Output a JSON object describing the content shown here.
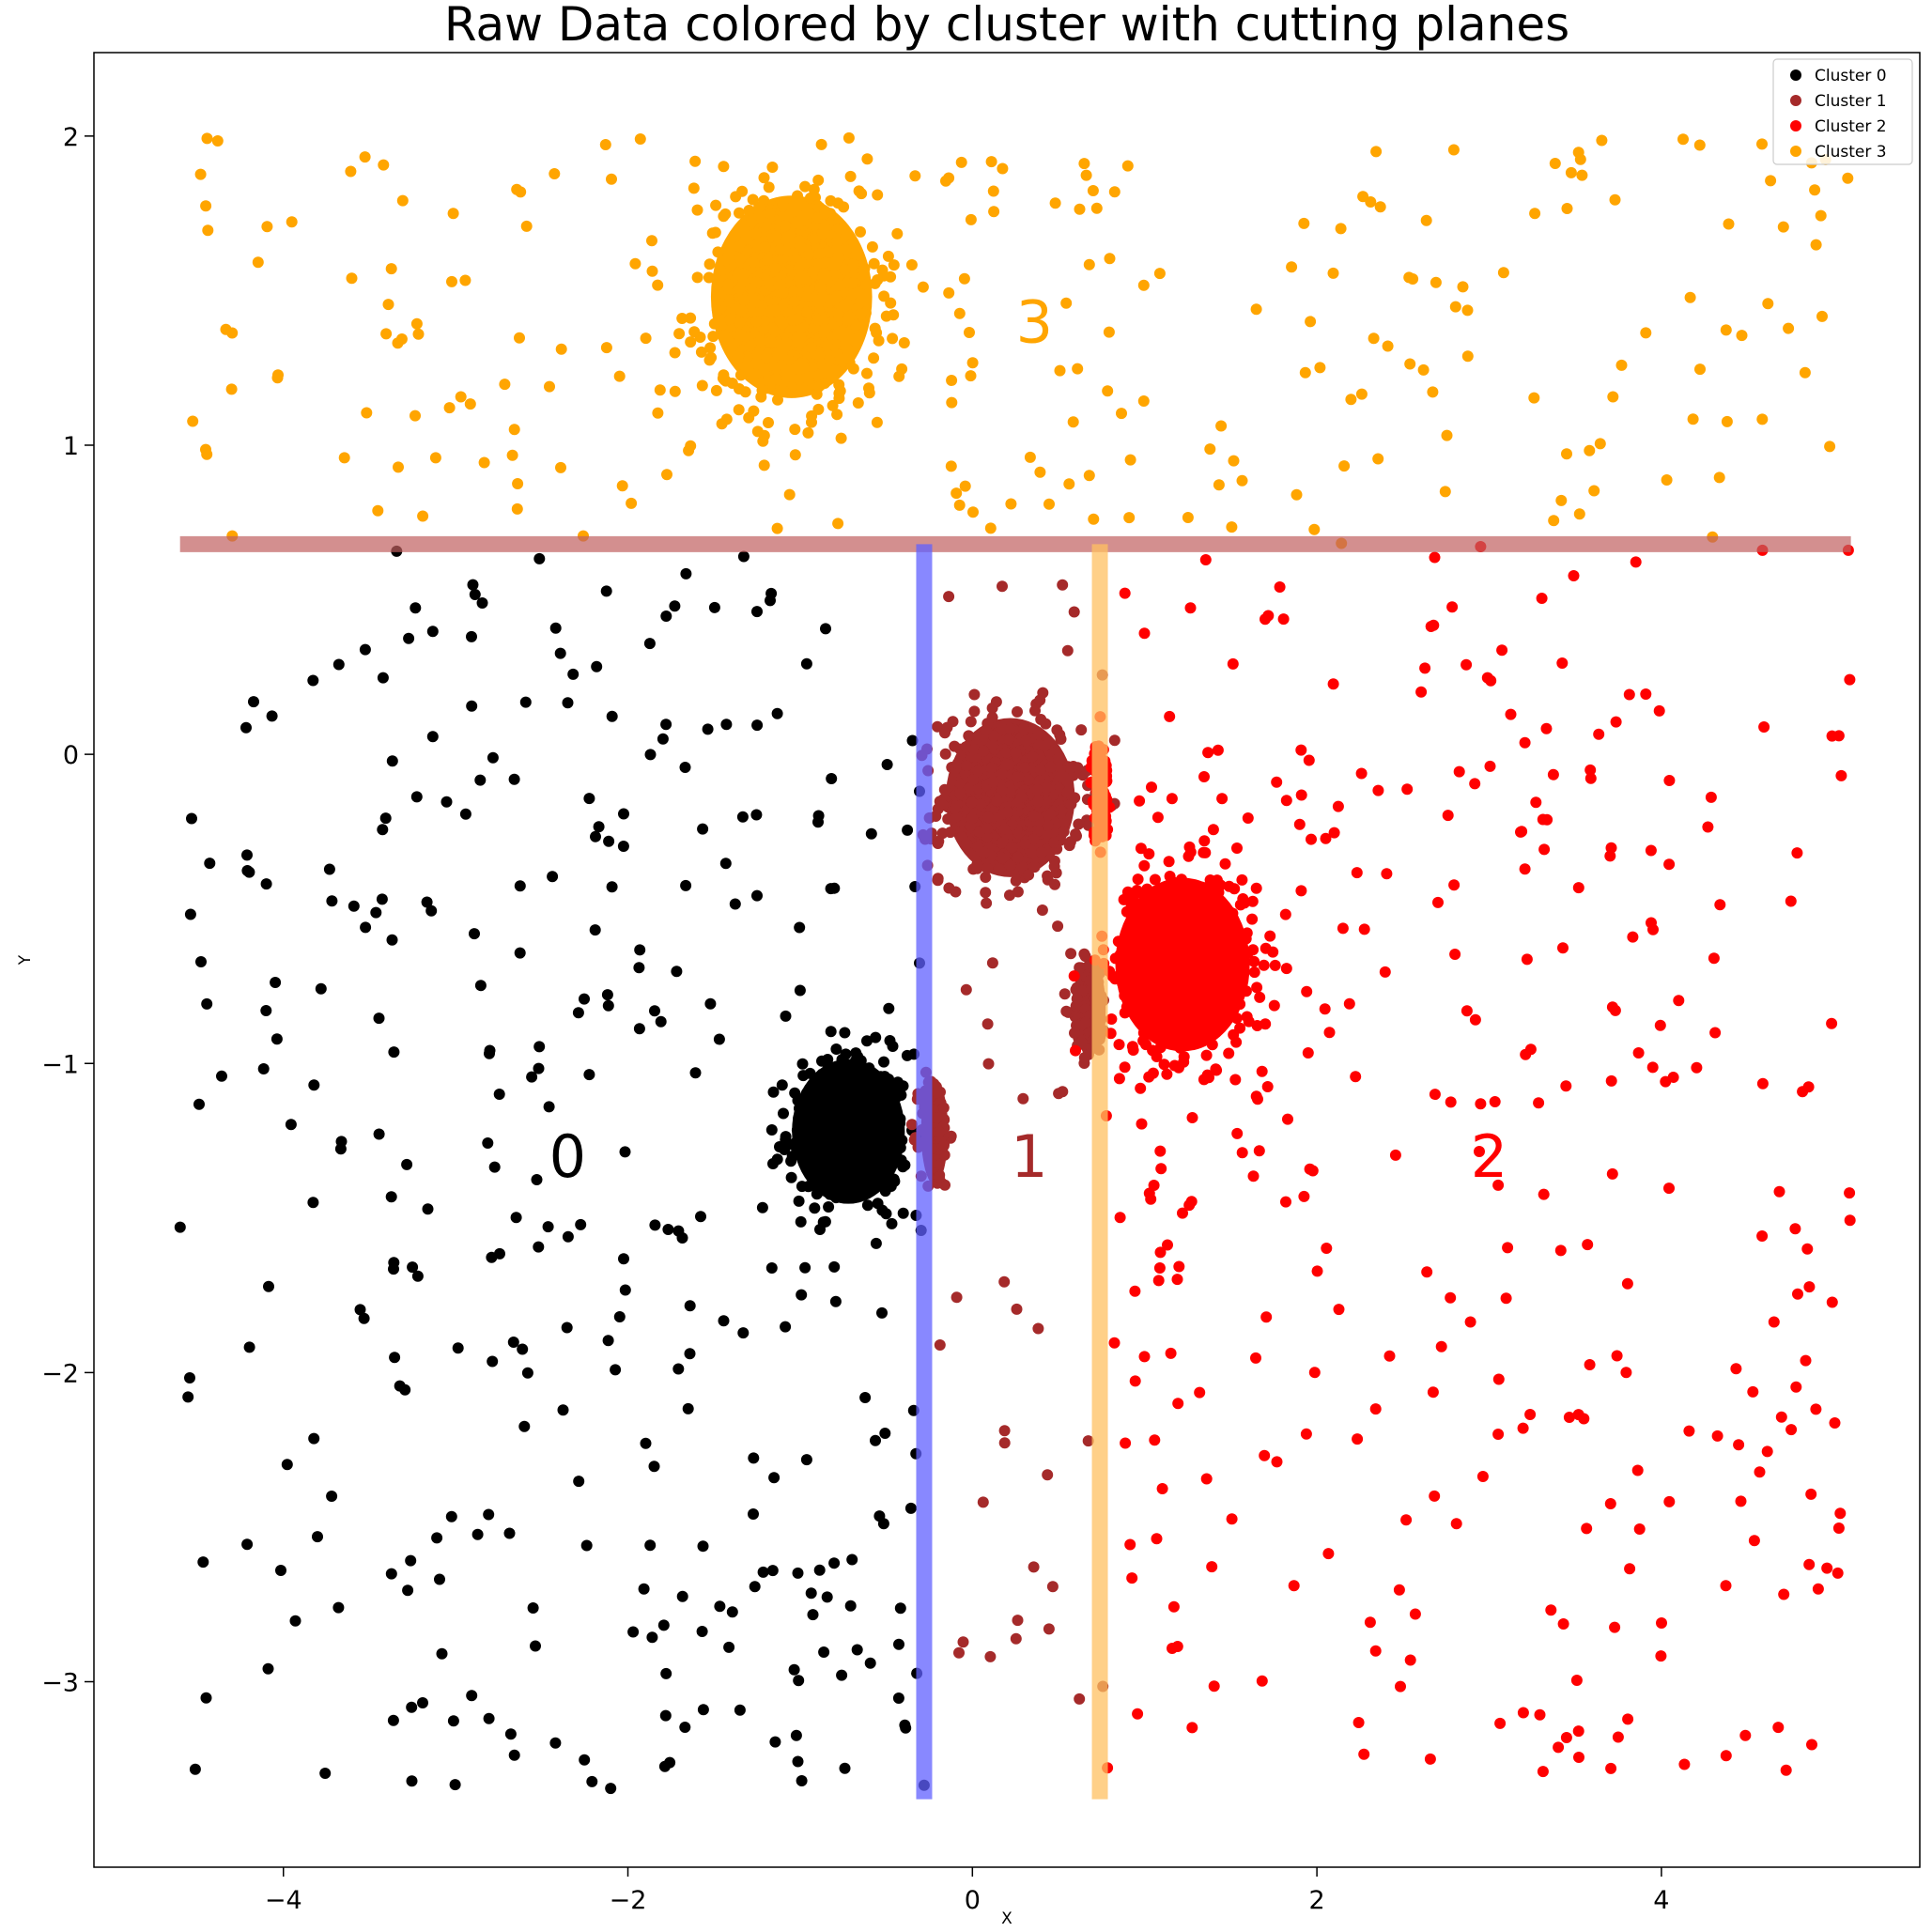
{
  "chart_data": {
    "type": "scatter",
    "title": "Raw Data colored by cluster with cutting planes",
    "xlabel": "X",
    "ylabel": "Y",
    "xlim": [
      -5.1,
      5.5
    ],
    "ylim": [
      -3.6,
      2.27
    ],
    "xticks": [
      -4,
      -2,
      0,
      2,
      4
    ],
    "yticks": [
      -3,
      -2,
      -1,
      0,
      1,
      2
    ],
    "legend_position": "top-right",
    "grid": false,
    "series": [
      {
        "name": "Cluster 0",
        "color": "#000000",
        "blobs": [
          {
            "cx": -0.72,
            "cy": -1.22,
            "rx": 0.42,
            "ry": 0.3
          }
        ],
        "x_range": [
          -4.6,
          -0.28
        ],
        "y_range": [
          -3.35,
          0.68
        ]
      },
      {
        "name": "Cluster 1",
        "color": "#a52a2a",
        "blobs": [
          {
            "cx": 0.22,
            "cy": -0.14,
            "rx": 0.48,
            "ry": 0.33
          },
          {
            "cx": -0.22,
            "cy": -1.22,
            "rx": 0.1,
            "ry": 0.22
          },
          {
            "cx": 0.68,
            "cy": -0.82,
            "rx": 0.12,
            "ry": 0.2
          }
        ],
        "x_range": [
          -0.28,
          0.76
        ],
        "y_range": [
          -3.35,
          0.68
        ]
      },
      {
        "name": "Cluster 2",
        "color": "#ff0000",
        "blobs": [
          {
            "cx": 1.22,
            "cy": -0.68,
            "rx": 0.5,
            "ry": 0.36
          },
          {
            "cx": 0.74,
            "cy": -0.12,
            "rx": 0.06,
            "ry": 0.2
          }
        ],
        "x_range": [
          0.76,
          5.1
        ],
        "y_range": [
          -3.35,
          0.68
        ]
      },
      {
        "name": "Cluster 3",
        "color": "#ffa500",
        "blobs": [
          {
            "cx": -1.05,
            "cy": 1.48,
            "rx": 0.6,
            "ry": 0.42
          }
        ],
        "x_range": [
          -4.6,
          5.1
        ],
        "y_range": [
          0.68,
          2.0
        ]
      }
    ],
    "cutting_planes": [
      {
        "orientation": "horizontal",
        "y": 0.68,
        "x_from": -4.6,
        "x_to": 5.1,
        "color": "#c06060"
      },
      {
        "orientation": "vertical",
        "x": -0.28,
        "y_from": -3.38,
        "y_to": 0.68,
        "color": "#6060ff"
      },
      {
        "orientation": "vertical",
        "x": 0.74,
        "y_from": -3.38,
        "y_to": 0.68,
        "color": "#ffc060"
      }
    ],
    "region_labels": [
      {
        "text": "0",
        "x": -2.35,
        "y": -1.3,
        "color": "#000000"
      },
      {
        "text": "1",
        "x": 0.33,
        "y": -1.3,
        "color": "#a52a2a"
      },
      {
        "text": "2",
        "x": 3.0,
        "y": -1.3,
        "color": "#ff0000"
      },
      {
        "text": "3",
        "x": 0.36,
        "y": 1.4,
        "color": "#ffa500"
      }
    ]
  }
}
